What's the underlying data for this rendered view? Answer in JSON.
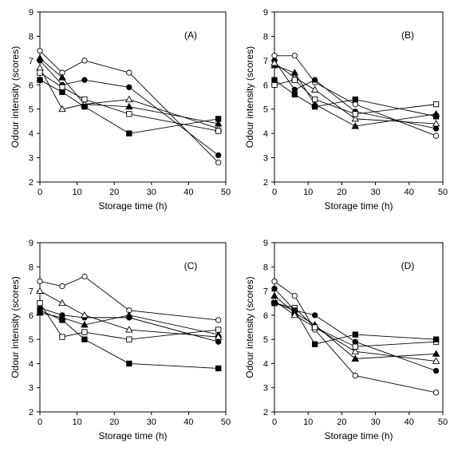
{
  "chart_data": [
    {
      "type": "line",
      "panel_label": "(A)",
      "xlabel": "Storage time (h)",
      "ylabel": "Odour intensity (scores)",
      "xlim": [
        0,
        50
      ],
      "ylim": [
        2,
        9
      ],
      "xticks": [
        0,
        10,
        20,
        30,
        40,
        50
      ],
      "yticks": [
        2,
        3,
        4,
        5,
        6,
        7,
        8,
        9
      ],
      "grid": false,
      "x": [
        0,
        6,
        12,
        24,
        48
      ],
      "series": [
        {
          "marker": "open-circle",
          "values": [
            7.4,
            6.5,
            7.0,
            6.5,
            2.8
          ]
        },
        {
          "marker": "filled-circle",
          "values": [
            7.0,
            6.0,
            6.2,
            5.9,
            3.1
          ]
        },
        {
          "marker": "filled-triangle",
          "values": [
            7.1,
            6.3,
            5.2,
            5.1,
            4.4
          ]
        },
        {
          "marker": "open-triangle",
          "values": [
            6.7,
            5.0,
            5.2,
            5.4,
            4.2
          ]
        },
        {
          "marker": "open-square",
          "values": [
            6.5,
            5.9,
            5.4,
            4.8,
            4.1
          ]
        },
        {
          "marker": "filled-square",
          "values": [
            6.2,
            5.7,
            5.1,
            4.0,
            4.6
          ]
        }
      ]
    },
    {
      "type": "line",
      "panel_label": "(B)",
      "xlabel": "Storage time (h)",
      "ylabel": "Odour intensity (scores)",
      "xlim": [
        0,
        50
      ],
      "ylim": [
        2,
        9
      ],
      "xticks": [
        0,
        10,
        20,
        30,
        40,
        50
      ],
      "yticks": [
        2,
        3,
        4,
        5,
        6,
        7,
        8,
        9
      ],
      "grid": false,
      "x": [
        0,
        6,
        12,
        24,
        48
      ],
      "series": [
        {
          "marker": "open-circle",
          "values": [
            7.2,
            7.2,
            6.1,
            5.2,
            3.9
          ]
        },
        {
          "marker": "filled-circle",
          "values": [
            7.0,
            5.8,
            6.2,
            4.9,
            4.2
          ]
        },
        {
          "marker": "filled-triangle",
          "values": [
            6.8,
            6.5,
            5.2,
            4.3,
            4.8
          ]
        },
        {
          "marker": "open-triangle",
          "values": [
            6.9,
            6.3,
            5.8,
            4.6,
            4.4
          ]
        },
        {
          "marker": "open-square",
          "values": [
            6.0,
            6.2,
            5.4,
            4.8,
            5.2
          ]
        },
        {
          "marker": "filled-square",
          "values": [
            6.2,
            5.6,
            5.1,
            5.4,
            4.7
          ]
        }
      ]
    },
    {
      "type": "line",
      "panel_label": "(C)",
      "xlabel": "Storage time (h)",
      "ylabel": "Odour intensity (scores)",
      "xlim": [
        0,
        50
      ],
      "ylim": [
        2,
        9
      ],
      "xticks": [
        0,
        10,
        20,
        30,
        40,
        50
      ],
      "yticks": [
        2,
        3,
        4,
        5,
        6,
        7,
        8,
        9
      ],
      "grid": false,
      "x": [
        0,
        6,
        12,
        24,
        48
      ],
      "series": [
        {
          "marker": "open-circle",
          "values": [
            7.4,
            7.2,
            7.6,
            6.2,
            5.8
          ]
        },
        {
          "marker": "filled-circle",
          "values": [
            6.3,
            6.0,
            5.9,
            5.9,
            4.9
          ]
        },
        {
          "marker": "filled-triangle",
          "values": [
            6.1,
            5.9,
            5.6,
            6.0,
            5.2
          ]
        },
        {
          "marker": "open-triangle",
          "values": [
            7.0,
            6.5,
            6.0,
            5.4,
            5.1
          ]
        },
        {
          "marker": "open-square",
          "values": [
            6.5,
            5.1,
            5.3,
            5.0,
            5.4
          ]
        },
        {
          "marker": "filled-square",
          "values": [
            6.2,
            5.8,
            5.0,
            4.0,
            3.8
          ]
        }
      ]
    },
    {
      "type": "line",
      "panel_label": "(D)",
      "xlabel": "Storage time (h)",
      "ylabel": "Odour intensity (scores)",
      "xlim": [
        0,
        50
      ],
      "ylim": [
        2,
        9
      ],
      "xticks": [
        0,
        10,
        20,
        30,
        40,
        50
      ],
      "yticks": [
        2,
        3,
        4,
        5,
        6,
        7,
        8,
        9
      ],
      "grid": false,
      "x": [
        0,
        6,
        12,
        24,
        48
      ],
      "series": [
        {
          "marker": "open-circle",
          "values": [
            7.4,
            6.8,
            5.4,
            3.5,
            2.8
          ]
        },
        {
          "marker": "filled-circle",
          "values": [
            7.1,
            6.2,
            6.0,
            4.9,
            3.7
          ]
        },
        {
          "marker": "filled-triangle",
          "values": [
            6.8,
            6.1,
            5.6,
            4.2,
            4.4
          ]
        },
        {
          "marker": "open-triangle",
          "values": [
            6.6,
            6.0,
            5.5,
            4.5,
            4.1
          ]
        },
        {
          "marker": "open-square",
          "values": [
            6.5,
            6.3,
            5.5,
            4.7,
            4.9
          ]
        },
        {
          "marker": "filled-square",
          "values": [
            6.5,
            6.2,
            4.8,
            5.2,
            5.0
          ]
        }
      ]
    }
  ]
}
